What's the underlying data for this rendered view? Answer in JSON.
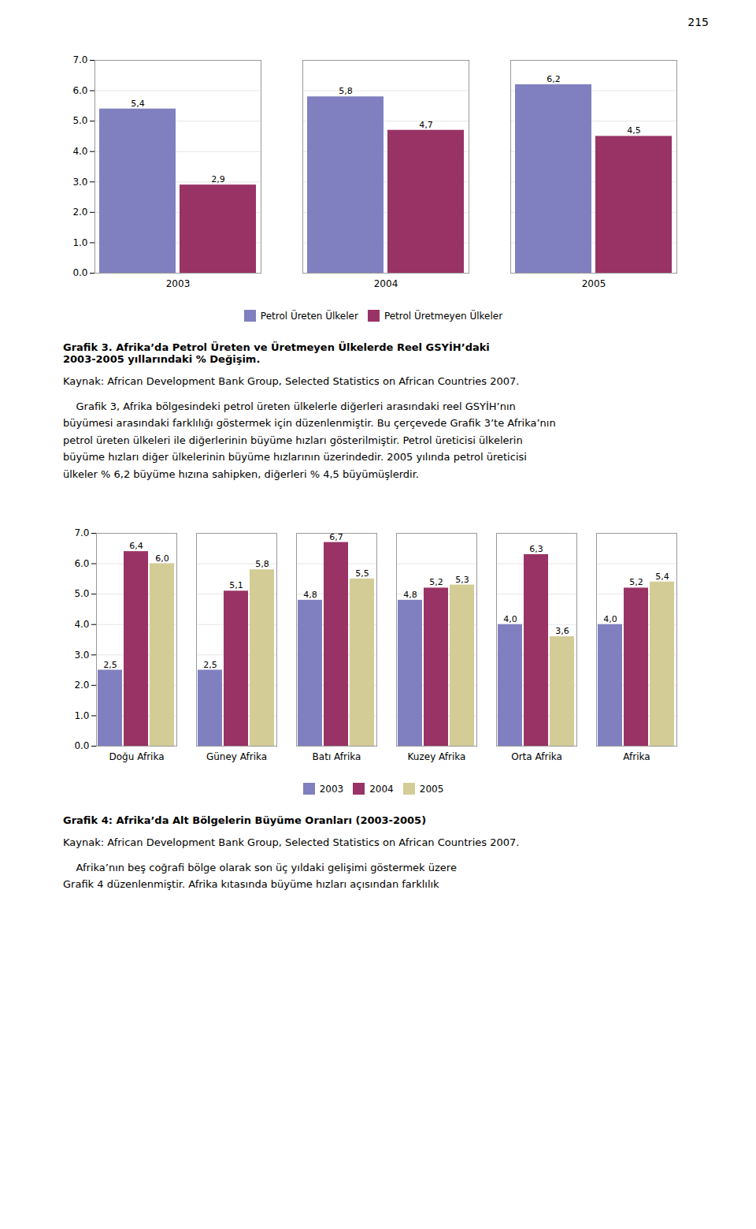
{
  "annotations": [
    "215"
  ],
  "chart_data": [
    {
      "type": "bar",
      "title": "Grafik 3. Afrika’da Petrol Üreten ve Üretmeyen Ülkelerde Reel GSYİH’daki\n2003-2005 yıllarındaki % Değişim.",
      "categories": [
        "2003",
        "2004",
        "2005"
      ],
      "series": [
        {
          "name": "Petrol Üreten Ülkeler",
          "color": "#8080C0",
          "values": [
            5.4,
            5.8,
            6.2
          ],
          "value_labels": [
            "5,4",
            "5,8",
            "6,2"
          ]
        },
        {
          "name": "Petrol Üretmeyen Ülkeler",
          "color": "#993366",
          "values": [
            2.9,
            4.7,
            4.5
          ],
          "value_labels": [
            "2,9",
            "4,7",
            "4,5"
          ]
        }
      ],
      "ylim": [
        0,
        7
      ],
      "yticks": [
        0,
        1,
        2,
        3,
        4,
        5,
        6,
        7
      ],
      "grid": true,
      "legend": "bottom",
      "data_labels": true,
      "annotations": [
        "Kaynak: African Development Bank Group, Selected Statistics on African Countries 2007.",
        "    Grafik 3, Afrika bölgesindeki petrol üreten ülkelerle diğerleri arasındaki reel GSYİH’nın",
        "büyümesi arasındaki farklılığı göstermek için düzenlenmiştir. Bu çerçevede Grafik 3’te Afrika’nın",
        "petrol üreten ülkeleri ile diğerlerinin büyüme hızları gösterilmiştir. Petrol üreticisi ülkelerin",
        "büyüme hızları diğer ülkelerinin büyüme hızlarının üzerindedir. 2005 yılında petrol üreticisi",
        "ülkeler % 6,2 büyüme hızına sahipken, diğerleri % 4,5 büyümüşlerdir."
      ]
    },
    {
      "type": "bar",
      "title": "Grafik 4: Afrika’da Alt Bölgelerin Büyüme Oranları (2003-2005)",
      "categories": [
        "Doğu Afrika",
        "Güney Afrika",
        "Batı Afrika",
        "Kuzey Afrika",
        "Orta Afrika",
        "Afrika"
      ],
      "series": [
        {
          "name": "2003",
          "color": "#8080C0",
          "values": [
            2.5,
            2.5,
            4.8,
            4.8,
            4.0,
            4.0
          ],
          "value_labels": [
            "2,5",
            "2,5",
            "4,8",
            "4,8",
            "4,0",
            "4,0"
          ]
        },
        {
          "name": "2004",
          "color": "#993366",
          "values": [
            6.4,
            5.1,
            6.7,
            5.2,
            6.3,
            5.2
          ],
          "value_labels": [
            "6,4",
            "5,1",
            "6,7",
            "5,2",
            "6,3",
            "5,2"
          ]
        },
        {
          "name": "2005",
          "color": "#D4CC96",
          "values": [
            6.0,
            5.8,
            5.5,
            5.3,
            3.6,
            5.4
          ],
          "value_labels": [
            "6,0",
            "5,8",
            "5,5",
            "5,3",
            "3,6",
            "5,4"
          ]
        }
      ],
      "ylim": [
        0,
        7
      ],
      "yticks": [
        0,
        1,
        2,
        3,
        4,
        5,
        6,
        7
      ],
      "grid": true,
      "legend": "bottom",
      "data_labels": true,
      "annotations": [
        "Kaynak: African Development Bank Group, Selected Statistics on African Countries 2007.",
        "    Afrika’nın beş coğrafi bölge olarak son üç yıldaki gelişimi göstermek üzere",
        "Grafik 4 düzenlenmiştir. Afrika kıtasında büyüme hızları açısından farklılık"
      ]
    }
  ]
}
